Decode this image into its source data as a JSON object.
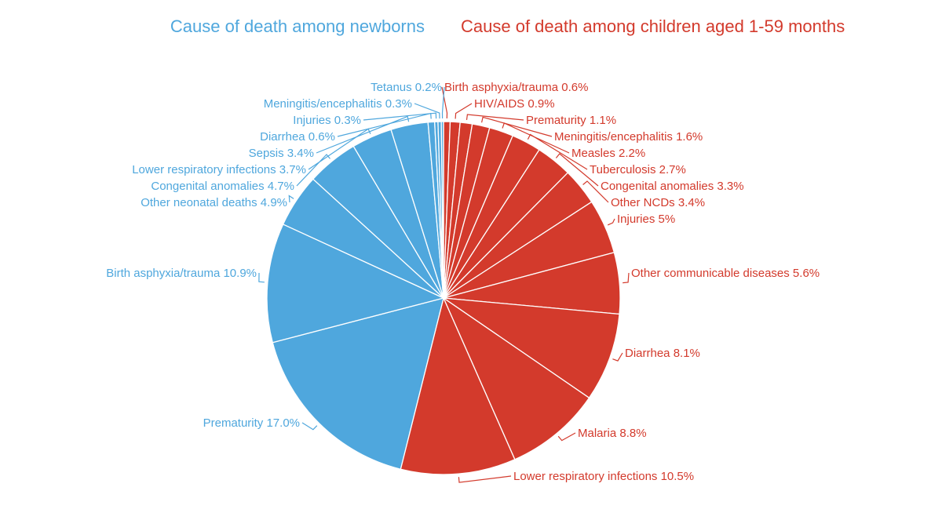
{
  "colors": {
    "newborn": "#4fa7dd",
    "child": "#d33a2c",
    "divider": "#ffffff"
  },
  "chart_data": {
    "type": "pie",
    "groups": [
      {
        "key": "child",
        "title": "Cause of death among children aged 1-59 months",
        "slices": [
          {
            "label": "Birth asphyxia/trauma",
            "value": 0.6,
            "text": "Birth asphyxia/trauma 0.6%"
          },
          {
            "label": "HIV/AIDS",
            "value": 0.9,
            "text": "HIV/AIDS 0.9%"
          },
          {
            "label": "Prematurity",
            "value": 1.1,
            "text": "Prematurity 1.1%"
          },
          {
            "label": "Meningitis/encephalitis",
            "value": 1.6,
            "text": "Meningitis/encephalitis 1.6%"
          },
          {
            "label": "Measles",
            "value": 2.2,
            "text": "Measles 2.2%"
          },
          {
            "label": "Tuberculosis",
            "value": 2.7,
            "text": "Tuberculosis 2.7%"
          },
          {
            "label": "Congenital anomalies",
            "value": 3.3,
            "text": "Congenital anomalies 3.3%"
          },
          {
            "label": "Other NCDs",
            "value": 3.4,
            "text": "Other NCDs 3.4%"
          },
          {
            "label": "Injuries",
            "value": 5.0,
            "text": "Injuries 5%"
          },
          {
            "label": "Other communicable diseases",
            "value": 5.6,
            "text": "Other communicable diseases 5.6%"
          },
          {
            "label": "Diarrhea",
            "value": 8.1,
            "text": "Diarrhea 8.1%"
          },
          {
            "label": "Malaria",
            "value": 8.8,
            "text": "Malaria 8.8%"
          },
          {
            "label": "Lower respiratory infections",
            "value": 10.5,
            "text": "Lower respiratory infections 10.5%"
          }
        ]
      },
      {
        "key": "newborn",
        "title": "Cause of death among newborns",
        "slices": [
          {
            "label": "Prematurity",
            "value": 17.0,
            "text": "Prematurity 17.0%"
          },
          {
            "label": "Birth asphyxia/trauma",
            "value": 10.9,
            "text": "Birth asphyxia/trauma 10.9%"
          },
          {
            "label": "Other neonatal deaths",
            "value": 4.9,
            "text": "Other neonatal deaths 4.9%"
          },
          {
            "label": "Congenital anomalies",
            "value": 4.7,
            "text": "Congenital anomalies 4.7%"
          },
          {
            "label": "Lower respiratory infections",
            "value": 3.7,
            "text": "Lower respiratory infections 3.7%"
          },
          {
            "label": "Sepsis",
            "value": 3.4,
            "text": "Sepsis 3.4%"
          },
          {
            "label": "Diarrhea",
            "value": 0.6,
            "text": "Diarrhea 0.6%"
          },
          {
            "label": "Injuries",
            "value": 0.3,
            "text": "Injuries 0.3%"
          },
          {
            "label": "Meningitis/encephalitis",
            "value": 0.3,
            "text": "Meningitis/encephalitis 0.3%"
          },
          {
            "label": "Tetanus",
            "value": 0.2,
            "text": "Tetanus 0.2%"
          }
        ]
      }
    ]
  }
}
